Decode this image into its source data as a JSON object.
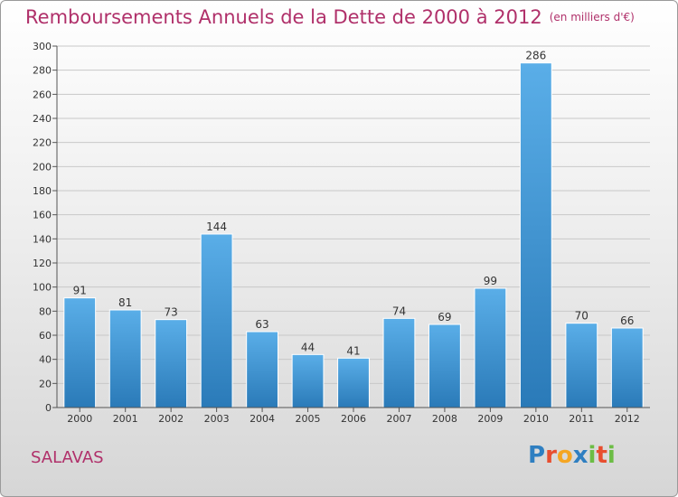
{
  "header": {
    "title": "Remboursements Annuels de la Dette de 2000 à 2012",
    "unit": "(en milliers d'€)"
  },
  "footer": {
    "commune": "SALAVAS",
    "logo": "Proxiti",
    "logo_colors": [
      "#2f7fc1",
      "#e84e2f",
      "#f5a623",
      "#2f7fc1",
      "#6cbd45",
      "#e84e2f",
      "#6cbd45"
    ]
  },
  "chart_data": {
    "type": "bar",
    "title": "Remboursements Annuels de la Dette de 2000 à 2012",
    "subtitle": "(en milliers d'€)",
    "categories": [
      "2000",
      "2001",
      "2002",
      "2003",
      "2004",
      "2005",
      "2006",
      "2007",
      "2008",
      "2009",
      "2010",
      "2011",
      "2012"
    ],
    "values": [
      91,
      81,
      73,
      144,
      63,
      44,
      41,
      74,
      69,
      99,
      286,
      70,
      66
    ],
    "ylim": [
      0,
      300
    ],
    "yticks": [
      0,
      20,
      40,
      60,
      80,
      100,
      120,
      140,
      160,
      180,
      200,
      220,
      240,
      260,
      280,
      300
    ],
    "grid": true,
    "bar_color_top": "#5aaee8",
    "bar_color_bottom": "#2a7ab8"
  }
}
